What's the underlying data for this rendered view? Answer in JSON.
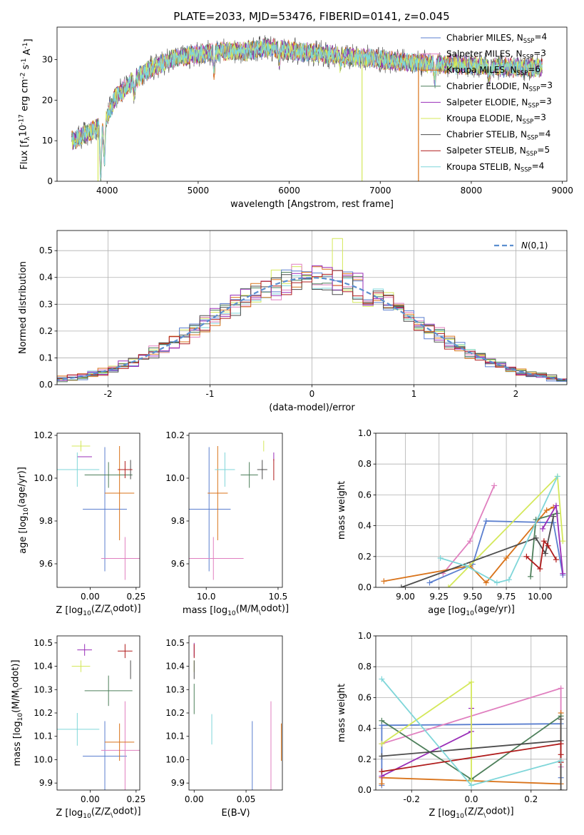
{
  "figure": {
    "title": "PLATE=2033, MJD=53476, FIBERID=0141, z=0.045"
  },
  "series_names": [
    "Chabrier MILES, N$_{SSP}$=4",
    "Salpeter MILES, N$_{SSP}$=3",
    "Kroupa MILES, N$_{SSP}$=6",
    "Chabrier ELODIE, N$_{SSP}$=3",
    "Salpeter ELODIE, N$_{SSP}$=3",
    "Kroupa ELODIE, N$_{SSP}$=3",
    "Chabrier STELIB, N$_{SSP}$=4",
    "Salpeter STELIB, N$_{SSP}$=5",
    "Kroupa STELIB, N$_{SSP}$=4"
  ],
  "series_colors": [
    "#5b7fcf",
    "#e07fbf",
    "#d9731a",
    "#4d7f5a",
    "#9a2fb8",
    "#d4e85a",
    "#4d4d4d",
    "#b01c1c",
    "#7fd6d9"
  ],
  "chart_data": [
    {
      "type": "line",
      "panel": "spectrum",
      "xlabel": "wavelength [Angstrom, rest frame]",
      "ylabel": "Flux [f$_λ$10$^{-17}$ erg cm$^{-2}$ s$^{-1}$ A$^{-1}$]",
      "xlim": [
        3450,
        9050
      ],
      "ylim": [
        0,
        38
      ],
      "xticks": [
        4000,
        5000,
        6000,
        7000,
        8000,
        9000
      ],
      "yticks": [
        0,
        10,
        20,
        30
      ],
      "grid": false,
      "legend": "upper right",
      "continuum": {
        "x": [
          3620,
          3800,
          3950,
          4100,
          4300,
          4500,
          4700,
          4900,
          5200,
          5500,
          5800,
          6100,
          6500,
          7000,
          7500,
          8000,
          8500,
          8800
        ],
        "y": [
          10,
          12,
          14,
          21,
          25,
          28,
          30,
          31,
          32,
          32,
          33,
          32,
          31,
          30,
          29,
          28.5,
          28,
          28
        ]
      },
      "features": [
        {
          "x": 3930,
          "depth": 12
        },
        {
          "x": 3970,
          "depth": 10
        },
        {
          "x": 4300,
          "depth": 4
        },
        {
          "x": 5175,
          "depth": 5
        },
        {
          "x": 5890,
          "depth": 3
        },
        {
          "x": 6563,
          "depth": 2
        },
        {
          "x": 7600,
          "depth": 4
        },
        {
          "x": 8200,
          "depth": 3
        }
      ],
      "spikes": [
        {
          "x": 3900,
          "series": 5
        },
        {
          "x": 6800,
          "series": 5
        },
        {
          "x": 7420,
          "series": 2
        }
      ]
    },
    {
      "type": "histogram",
      "panel": "residuals",
      "xlabel": "(data-model)/error",
      "ylabel": "Normed distribution",
      "xlim": [
        -2.5,
        2.5
      ],
      "ylim": [
        0,
        0.575
      ],
      "xticks": [
        -2,
        -1,
        0,
        1,
        2
      ],
      "yticks": [
        0.0,
        0.1,
        0.2,
        0.3,
        0.4,
        0.5
      ],
      "bin_width": 0.1,
      "grid": true,
      "legend": "upper right",
      "reference_curve": {
        "label": "$\\mathcal{N}(0,1)$",
        "mean": 0,
        "sigma": 1
      }
    },
    {
      "type": "scatter",
      "panel": "age_vs_Z",
      "xlabel": "Z [log$_{10}$($Z/Z_\\odot$)]",
      "ylabel": "age  [log$_{10}$($age/yr$)]",
      "xlim": [
        -0.18,
        0.27
      ],
      "ylim": [
        9.49,
        10.21
      ],
      "xticks": [
        -0.25,
        0.0,
        0.25
      ],
      "xticklabels": [
        "",
        "0.00",
        "0.25"
      ],
      "yticks": [
        9.6,
        9.8,
        10.0,
        10.2
      ],
      "points": [
        {
          "x": 0.08,
          "y": 9.855,
          "xerr": 0.12,
          "yerr": 0.29
        },
        {
          "x": 0.19,
          "y": 9.625,
          "xerr": 0.13,
          "yerr": 0.1
        },
        {
          "x": 0.16,
          "y": 9.93,
          "xerr": 0.08,
          "yerr": 0.22
        },
        {
          "x": 0.1,
          "y": 10.015,
          "xerr": 0.13,
          "yerr": 0.06
        },
        {
          "x": -0.03,
          "y": 10.1,
          "xerr": 0.04,
          "yerr": 0.0
        },
        {
          "x": -0.05,
          "y": 10.15,
          "xerr": 0.05,
          "yerr": 0.025
        },
        {
          "x": 0.22,
          "y": 10.04,
          "xerr": 0.0,
          "yerr": 0.045
        },
        {
          "x": 0.19,
          "y": 10.04,
          "xerr": 0.04,
          "yerr": 0.04
        },
        {
          "x": -0.07,
          "y": 10.04,
          "xerr": 0.12,
          "yerr": 0.08
        }
      ]
    },
    {
      "type": "scatter",
      "panel": "age_vs_mass",
      "xlabel": "mass [log$_{10}$($M/M_\\odot$)]",
      "ylabel": "",
      "xlim": [
        9.88,
        10.53
      ],
      "ylim": [
        9.49,
        10.21
      ],
      "xticks": [
        10.0,
        10.5
      ],
      "yticks": [
        9.6,
        9.8,
        10.0,
        10.2
      ],
      "points": [
        {
          "x": 10.02,
          "y": 9.855,
          "xerr": 0.15,
          "yerr": 0.29
        },
        {
          "x": 10.05,
          "y": 9.625,
          "xerr": 0.21,
          "yerr": 0.1
        },
        {
          "x": 10.08,
          "y": 9.93,
          "xerr": 0.07,
          "yerr": 0.22
        },
        {
          "x": 10.3,
          "y": 10.015,
          "xerr": 0.06,
          "yerr": 0.06
        },
        {
          "x": 10.47,
          "y": 10.1,
          "xerr": 0.0,
          "yerr": 0.02
        },
        {
          "x": 10.4,
          "y": 10.15,
          "xerr": 0.0,
          "yerr": 0.025
        },
        {
          "x": 10.39,
          "y": 10.04,
          "xerr": 0.035,
          "yerr": 0.045
        },
        {
          "x": 10.47,
          "y": 10.04,
          "xerr": 0.0,
          "yerr": 0.05
        },
        {
          "x": 10.13,
          "y": 10.04,
          "xerr": 0.07,
          "yerr": 0.08
        }
      ]
    },
    {
      "type": "line",
      "panel": "weight_vs_age",
      "xlabel": "age  [log$_{10}$($age/yr$)]",
      "ylabel": "mass weight",
      "xlim": [
        8.78,
        10.2
      ],
      "ylim": [
        0,
        1
      ],
      "xticks": [
        9.0,
        9.25,
        9.5,
        9.75,
        10.0
      ],
      "yticks": [
        0.0,
        0.2,
        0.4,
        0.6,
        0.8,
        1.0
      ],
      "grid": true,
      "series": [
        {
          "x": [
            9.18,
            9.5,
            9.6,
            10.1,
            10.17
          ],
          "y": [
            0.03,
            0.15,
            0.43,
            0.42,
            0.08
          ]
        },
        {
          "x": [
            9.28,
            9.48,
            9.66
          ],
          "y": [
            0.09,
            0.3,
            0.66
          ]
        },
        {
          "x": [
            8.84,
            9.48,
            9.6,
            9.75,
            10.05,
            10.1
          ],
          "y": [
            0.04,
            0.14,
            0.03,
            0.19,
            0.5,
            0.52
          ]
        },
        {
          "x": [
            9.93,
            9.97,
            10.13
          ],
          "y": [
            0.07,
            0.44,
            0.48
          ]
        },
        {
          "x": [
            10.02,
            10.12,
            10.17
          ],
          "y": [
            0.38,
            0.53,
            0.09
          ]
        },
        {
          "x": [
            9.32,
            10.13,
            10.17
          ],
          "y": [
            0.0,
            0.72,
            0.3
          ]
        },
        {
          "x": [
            8.97,
            9.97,
            10.04,
            10.1
          ],
          "y": [
            0.0,
            0.32,
            0.22,
            0.46
          ]
        },
        {
          "x": [
            9.9,
            10.0,
            10.03,
            10.06,
            10.12
          ],
          "y": [
            0.2,
            0.12,
            0.3,
            0.27,
            0.18
          ]
        },
        {
          "x": [
            9.26,
            9.45,
            9.68,
            9.77,
            10.13
          ],
          "y": [
            0.19,
            0.14,
            0.03,
            0.05,
            0.72
          ]
        }
      ]
    },
    {
      "type": "scatter",
      "panel": "mass_vs_Z",
      "xlabel": "Z [log$_{10}$($Z/Z_\\odot$)]",
      "ylabel": "mass [log$_{10}$($M/M_\\odot$)]",
      "xlim": [
        -0.18,
        0.27
      ],
      "ylim": [
        9.87,
        10.53
      ],
      "xticks": [
        -0.25,
        0.0,
        0.25
      ],
      "xticklabels": [
        "",
        "0.00",
        "0.25"
      ],
      "yticks": [
        9.9,
        10.0,
        10.1,
        10.2,
        10.3,
        10.4,
        10.5
      ],
      "points": [
        {
          "x": 0.08,
          "y": 10.015,
          "xerr": 0.12,
          "yerr": 0.15
        },
        {
          "x": 0.19,
          "y": 10.04,
          "xerr": 0.13,
          "yerr": 0.21
        },
        {
          "x": 0.16,
          "y": 10.075,
          "xerr": 0.08,
          "yerr": 0.08
        },
        {
          "x": 0.1,
          "y": 10.295,
          "xerr": 0.13,
          "yerr": 0.065
        },
        {
          "x": -0.03,
          "y": 10.47,
          "xerr": 0.04,
          "yerr": 0.025
        },
        {
          "x": -0.05,
          "y": 10.4,
          "xerr": 0.05,
          "yerr": 0.025
        },
        {
          "x": 0.22,
          "y": 10.385,
          "xerr": 0.0,
          "yerr": 0.04
        },
        {
          "x": 0.19,
          "y": 10.465,
          "xerr": 0.04,
          "yerr": 0.03
        },
        {
          "x": -0.07,
          "y": 10.13,
          "xerr": 0.12,
          "yerr": 0.07
        }
      ]
    },
    {
      "type": "scatter",
      "panel": "mass_vs_EBV",
      "xlabel": "E(B-V)",
      "ylabel": "",
      "xlim": [
        -0.005,
        0.085
      ],
      "ylim": [
        9.87,
        10.53
      ],
      "xticks": [
        0.0,
        0.05
      ],
      "yticks": [
        9.9,
        10.0,
        10.1,
        10.2,
        10.3,
        10.4,
        10.5
      ],
      "points": [
        {
          "x": 0.056,
          "y": 10.015,
          "yerr": 0.15
        },
        {
          "x": 0.074,
          "y": 10.04,
          "yerr": 0.21
        },
        {
          "x": 0.084,
          "y": 10.075,
          "yerr": 0.08
        },
        {
          "x": 0.0,
          "y": 10.26,
          "yerr": 0.065
        },
        {
          "x": 0.0,
          "y": 10.47,
          "yerr": 0.03
        },
        {
          "x": 0.0,
          "y": 10.4,
          "yerr": 0.025
        },
        {
          "x": 0.0,
          "y": 10.385,
          "yerr": 0.04
        },
        {
          "x": 0.0,
          "y": 10.465,
          "yerr": 0.03
        },
        {
          "x": 0.017,
          "y": 10.13,
          "yerr": 0.065
        }
      ]
    },
    {
      "type": "line",
      "panel": "weight_vs_Z",
      "xlabel": "Z [log$_{10}$($Z/Z_\\odot$)]",
      "ylabel": "mass weight",
      "xlim": [
        -0.32,
        0.32
      ],
      "ylim": [
        0,
        1
      ],
      "xticks": [
        -0.2,
        0.0,
        0.2
      ],
      "yticks": [
        0.0,
        0.2,
        0.4,
        0.6,
        0.8,
        1.0
      ],
      "grid": true,
      "series": [
        {
          "x": [
            -0.3,
            -0.3,
            0.3,
            0.3
          ],
          "y": [
            0.03,
            0.42,
            0.43,
            0.08
          ]
        },
        {
          "x": [
            -0.3,
            0.3,
            0.3
          ],
          "y": [
            0.3,
            0.66,
            0.15
          ]
        },
        {
          "x": [
            -0.3,
            -0.3,
            0.3,
            0.3
          ],
          "y": [
            0.04,
            0.08,
            0.04,
            0.5
          ]
        },
        {
          "x": [
            -0.3,
            0.0,
            0.3
          ],
          "y": [
            0.45,
            0.07,
            0.48
          ]
        },
        {
          "x": [
            -0.3,
            0.0,
            0.0
          ],
          "y": [
            0.09,
            0.38,
            0.53
          ]
        },
        {
          "x": [
            -0.3,
            0.0,
            0.0
          ],
          "y": [
            0.3,
            0.7,
            0.06
          ]
        },
        {
          "x": [
            -0.3,
            0.3,
            0.3,
            0.3
          ],
          "y": [
            0.22,
            0.32,
            0.46,
            0.0
          ]
        },
        {
          "x": [
            -0.3,
            0.3,
            0.3,
            0.3
          ],
          "y": [
            0.12,
            0.3,
            0.23,
            0.18
          ]
        },
        {
          "x": [
            -0.3,
            0.0,
            0.3
          ],
          "y": [
            0.72,
            0.03,
            0.19
          ]
        }
      ]
    }
  ]
}
